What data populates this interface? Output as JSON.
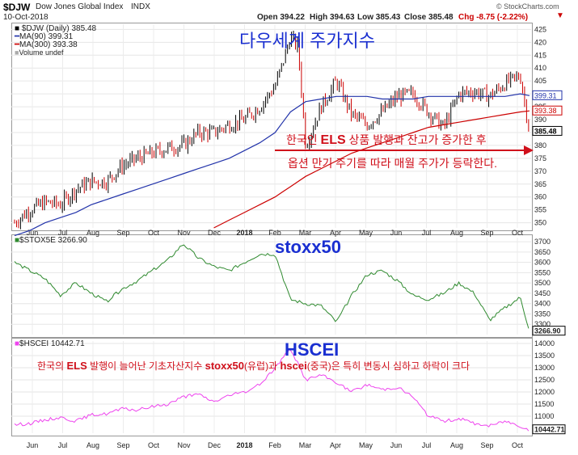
{
  "header": {
    "symbol": "$DJW",
    "name": "Dow Jones Global Index",
    "exchange": "INDX",
    "date": "10-Oct-2018",
    "open": "Open 394.22",
    "high": "High 394.63",
    "low": "Low 385.43",
    "close": "Close 385.48",
    "chg": "Chg -8.75 (-2.22%)",
    "brand": "© StockCharts.com"
  },
  "legend": {
    "line1": "$DJW (Daily) 385.48",
    "line2": "MA(90) 399.31",
    "line3": "MA(300) 393.38",
    "line4": "Volume undef"
  },
  "annotations": {
    "title_ko": "다우세계 주가지수",
    "note_line1_a": "한국인 ",
    "note_els": "ELS",
    "note_line1_b": " 상품 발행과 잔고가 증가한 후",
    "note_line2": "옵션 만기 주기를 따라 매월 주가가 등락한다.",
    "stoxx_label": "stoxx50",
    "hscei_label": "HSCEI",
    "pink_a": "한국의 ",
    "pink_els": "ELS",
    "pink_b": " 발행이 늘어난 기초자산지수 ",
    "pink_stoxx": "stoxx50",
    "pink_c": "(유럽)과 ",
    "pink_hscei": "hscei",
    "pink_d": "(중국)은 특히 변동시 심하고 하락이 크다"
  },
  "panel2": {
    "label": "$STOX5E 3266.90",
    "badge": "3266.90"
  },
  "panel3": {
    "label": "$HSCEI 10442.71",
    "badge": "10442.71"
  },
  "colors": {
    "price": "#000000",
    "down": "#cc0000",
    "ma90": "#2233aa",
    "ma300": "#cc0000",
    "stoxx": "#2f8a2f",
    "hscei": "#ee44ee"
  },
  "chart_data": [
    {
      "type": "bar",
      "title": "$DJW (Daily) 385.48",
      "y_ticks": [
        350,
        355,
        360,
        365,
        370,
        375,
        380,
        385,
        390,
        395,
        400,
        405,
        410,
        415,
        420,
        425
      ],
      "ylim": [
        348,
        427
      ],
      "x_ticks": [
        "Jun",
        "Jul",
        "Aug",
        "Sep",
        "Oct",
        "Nov",
        "Dec",
        "2018",
        "Feb",
        "Mar",
        "Apr",
        "May",
        "Jun",
        "Jul",
        "Aug",
        "Sep",
        "Oct"
      ],
      "badges": [
        "399.31",
        "393.38",
        "385.48"
      ],
      "x": [
        0,
        10,
        20,
        30,
        40,
        50,
        60,
        70,
        80,
        90,
        100,
        110,
        120,
        130,
        140,
        150,
        160,
        170,
        175,
        180,
        185,
        190,
        200,
        210,
        220,
        230,
        240,
        250,
        260,
        270,
        280,
        290,
        300,
        310,
        320,
        330,
        336
      ],
      "series": [
        {
          "name": "$DJW (Daily)",
          "values": [
            350,
            355,
            358,
            357,
            363,
            366,
            366,
            372,
            375,
            377,
            379,
            380,
            385,
            385,
            388,
            390,
            395,
            403,
            412,
            422,
            418,
            380,
            395,
            405,
            392,
            388,
            393,
            399,
            400,
            393,
            387,
            400,
            401,
            399,
            404,
            407,
            385.48
          ]
        },
        {
          "name": "MA(90)",
          "values": [
            345,
            347,
            350,
            352,
            354,
            357,
            359,
            361,
            363,
            365,
            367,
            369,
            371,
            373,
            375,
            378,
            381,
            385,
            389,
            393,
            395,
            397,
            398,
            399,
            399,
            399,
            398,
            398,
            398,
            399,
            399,
            399,
            399,
            399,
            399,
            400,
            399.31
          ]
        },
        {
          "name": "MA(300)",
          "values": [
            null,
            null,
            null,
            null,
            null,
            null,
            null,
            null,
            null,
            null,
            null,
            null,
            null,
            348,
            351,
            354,
            357,
            360,
            362,
            364,
            366,
            368,
            371,
            374,
            377,
            379,
            381,
            383,
            385,
            387,
            388,
            389,
            390,
            391,
            392,
            393,
            393.38
          ]
        }
      ]
    },
    {
      "type": "line",
      "title": "$STOX5E 3266.90",
      "y_ticks": [
        3300,
        3350,
        3400,
        3450,
        3500,
        3550,
        3600,
        3650,
        3700
      ],
      "ylim": [
        3250,
        3720
      ],
      "x": [
        0,
        10,
        20,
        30,
        40,
        50,
        60,
        70,
        80,
        90,
        100,
        110,
        120,
        130,
        140,
        150,
        160,
        170,
        180,
        190,
        200,
        210,
        220,
        230,
        240,
        250,
        260,
        270,
        280,
        290,
        300,
        310,
        320,
        330,
        336
      ],
      "series": [
        {
          "name": "$STOX5E",
          "values": [
            3600,
            3560,
            3520,
            3440,
            3500,
            3450,
            3410,
            3470,
            3510,
            3560,
            3610,
            3690,
            3620,
            3580,
            3560,
            3600,
            3640,
            3640,
            3420,
            3400,
            3390,
            3310,
            3440,
            3540,
            3560,
            3510,
            3440,
            3420,
            3450,
            3500,
            3450,
            3320,
            3380,
            3430,
            3266.9
          ]
        }
      ]
    },
    {
      "type": "line",
      "title": "$HSCEI 10442.71",
      "y_ticks": [
        11000,
        11500,
        12000,
        12500,
        13000,
        13500,
        14000
      ],
      "ylim": [
        10300,
        14100
      ],
      "x": [
        0,
        10,
        20,
        30,
        40,
        50,
        60,
        70,
        80,
        90,
        100,
        110,
        120,
        130,
        140,
        150,
        160,
        170,
        180,
        190,
        200,
        210,
        220,
        230,
        240,
        250,
        260,
        270,
        280,
        290,
        300,
        310,
        320,
        330,
        336
      ],
      "series": [
        {
          "name": "$HSCEI",
          "values": [
            10650,
            10700,
            10850,
            10950,
            10800,
            11050,
            11100,
            11300,
            11250,
            11400,
            11500,
            11800,
            11900,
            11600,
            11850,
            12000,
            12300,
            13000,
            13800,
            12500,
            12700,
            12400,
            12000,
            12300,
            12100,
            12200,
            11800,
            11000,
            10800,
            10900,
            10700,
            10600,
            10800,
            10600,
            10442.71
          ]
        }
      ]
    }
  ]
}
